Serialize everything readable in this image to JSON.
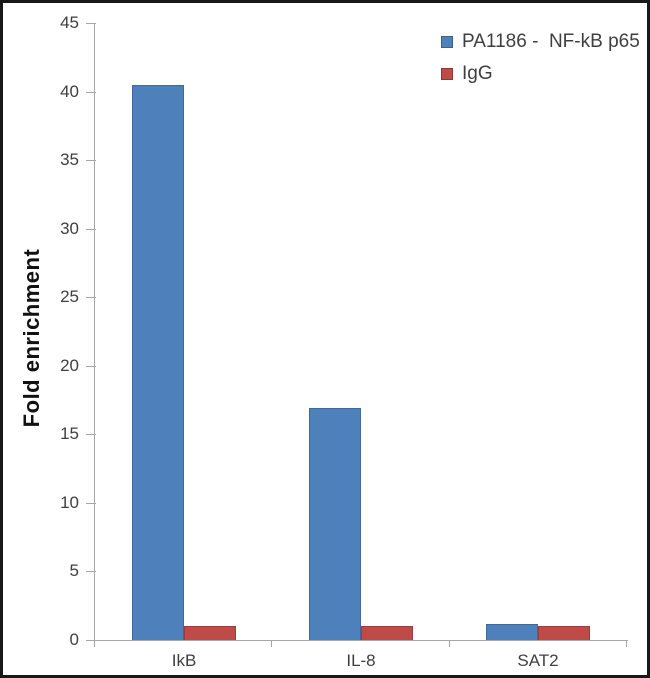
{
  "colors": {
    "axis": "#a6a6a6",
    "text": "#3f3f3f",
    "frame": "#181818",
    "background": "#ffffff",
    "series_blue": "#4e80bc",
    "series_red": "#be4b48"
  },
  "legend": {
    "position": "top-right",
    "items": [
      {
        "label": "PA1186 -  NF-kB p65",
        "color": "#4e80bc"
      },
      {
        "label": "IgG",
        "color": "#be4b48"
      }
    ]
  },
  "chart_data": {
    "type": "bar",
    "title": "",
    "xlabel": "",
    "ylabel": "Fold enrichment",
    "categories": [
      "IkB",
      "IL-8",
      "SAT2"
    ],
    "series": [
      {
        "name": "PA1186 -  NF-kB p65",
        "color": "#4e80bc",
        "values": [
          40.5,
          16.9,
          1.2
        ]
      },
      {
        "name": "IgG",
        "color": "#be4b48",
        "values": [
          1.0,
          1.0,
          1.0
        ]
      }
    ],
    "ylim": [
      0,
      45
    ],
    "ytick_step": 5,
    "yticks": [
      0,
      5,
      10,
      15,
      20,
      25,
      30,
      35,
      40,
      45
    ],
    "grid": false,
    "legend_position": "top-right"
  }
}
